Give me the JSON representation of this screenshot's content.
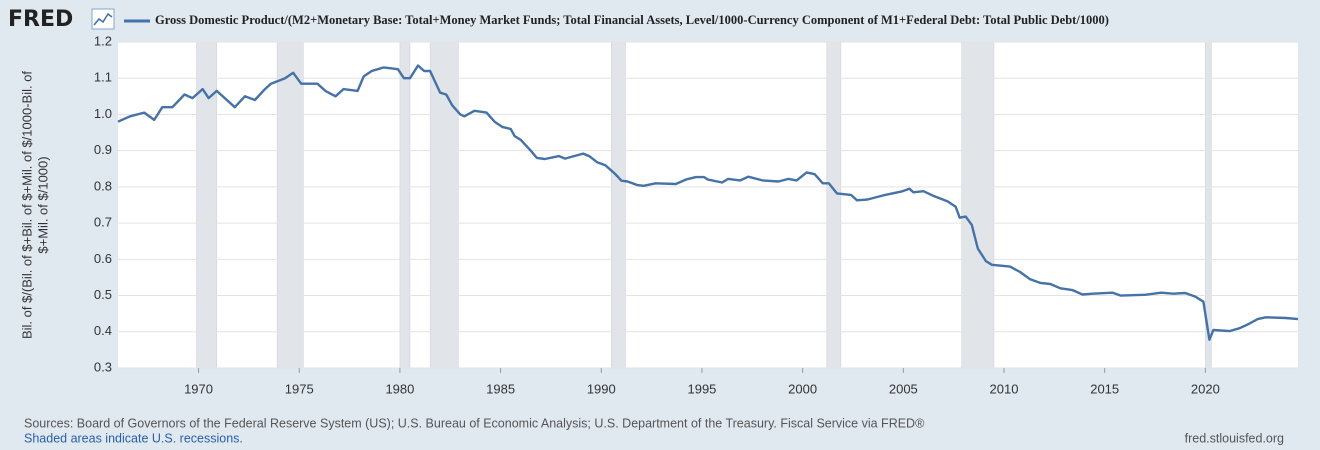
{
  "chart_data": {
    "type": "line",
    "logo": "FRED",
    "ylabel": [
      "Bil. of $/(Bil. of $+Bil. of $+Mil. of $/1000-Bil. of",
      "$+Mil. of $/1000)"
    ],
    "source": "Sources: Board of Governors of the Federal Reserve System (US); U.S. Bureau of Economic Analysis; U.S. Department of the Treasury. Fiscal Service via FRED®",
    "recession_note": "Shaded areas indicate U.S. recessions.",
    "site": "fred.stlouisfed.org",
    "xlim": [
      1966,
      2024.6
    ],
    "xticks": [
      1970,
      1975,
      1980,
      1985,
      1990,
      1995,
      2000,
      2005,
      2010,
      2015,
      2020
    ],
    "ylim": [
      0.3,
      1.2
    ],
    "yticks": [
      0.3,
      0.4,
      0.5,
      0.6,
      0.7,
      0.8,
      0.9,
      {
        "value": 1,
        "label": "1.0"
      },
      1.1,
      1.2
    ],
    "grid": true,
    "recession_color": "#e1e5ea",
    "recessions": [
      [
        1969.9,
        1970.9
      ],
      [
        1973.9,
        1975.2
      ],
      [
        1980.0,
        1980.5
      ],
      [
        1981.5,
        1982.9
      ],
      [
        1990.5,
        1991.2
      ],
      [
        2001.2,
        2001.9
      ],
      [
        2007.9,
        2009.5
      ],
      [
        2020.0,
        2020.3
      ]
    ],
    "series": [
      {
        "name": "Gross Domestic Product/(M2+Monetary Base: Total+Money Market Funds; Total Financial Assets, Level/1000-Currency Component of M1+Federal Debt: Total Public Debt/1000)",
        "color": "#4572a7",
        "x": [
          1966.0,
          1966.6,
          1967.3,
          1967.8,
          1968.2,
          1968.7,
          1969.3,
          1969.7,
          1970.2,
          1970.5,
          1970.9,
          1971.8,
          1972.3,
          1972.8,
          1973.3,
          1973.6,
          1974.3,
          1974.7,
          1975.1,
          1975.9,
          1976.3,
          1976.8,
          1977.2,
          1977.9,
          1978.2,
          1978.6,
          1979.2,
          1979.9,
          1980.2,
          1980.5,
          1980.9,
          1981.2,
          1981.5,
          1982.0,
          1982.3,
          1982.6,
          1983.0,
          1983.2,
          1983.7,
          1984.3,
          1984.7,
          1985.1,
          1985.5,
          1985.7,
          1986.0,
          1986.5,
          1986.8,
          1987.2,
          1987.9,
          1988.2,
          1989.1,
          1989.4,
          1989.8,
          1990.2,
          1990.7,
          1991.0,
          1991.3,
          1991.8,
          1992.1,
          1992.7,
          1993.7,
          1994.2,
          1994.7,
          1995.1,
          1995.3,
          1996.0,
          1996.3,
          1996.9,
          1997.3,
          1998.0,
          1998.8,
          1999.3,
          1999.7,
          2000.2,
          2000.6,
          2001.0,
          2001.3,
          2001.7,
          2002.4,
          2002.7,
          2003.2,
          2004.1,
          2004.9,
          2005.3,
          2005.5,
          2006.0,
          2006.5,
          2007.2,
          2007.6,
          2007.8,
          2008.1,
          2008.4,
          2008.7,
          2009.1,
          2009.4,
          2010.3,
          2010.8,
          2011.3,
          2011.8,
          2012.3,
          2012.8,
          2013.4,
          2013.9,
          2014.4,
          2015.4,
          2015.8,
          2017.0,
          2017.8,
          2018.4,
          2019.0,
          2019.5,
          2019.9,
          2020.2,
          2020.4,
          2021.2,
          2021.7,
          2022.1,
          2022.6,
          2023.0,
          2024.0,
          2024.6
        ],
        "values": [
          0.98,
          0.995,
          1.005,
          0.985,
          1.02,
          1.02,
          1.055,
          1.045,
          1.07,
          1.045,
          1.065,
          1.02,
          1.05,
          1.04,
          1.07,
          1.085,
          1.1,
          1.115,
          1.085,
          1.085,
          1.065,
          1.05,
          1.07,
          1.065,
          1.105,
          1.12,
          1.13,
          1.125,
          1.1,
          1.1,
          1.135,
          1.12,
          1.12,
          1.06,
          1.055,
          1.025,
          1.0,
          0.995,
          1.01,
          1.005,
          0.98,
          0.965,
          0.96,
          0.94,
          0.93,
          0.9,
          0.88,
          0.877,
          0.885,
          0.878,
          0.892,
          0.885,
          0.868,
          0.86,
          0.835,
          0.817,
          0.815,
          0.805,
          0.803,
          0.81,
          0.808,
          0.82,
          0.827,
          0.827,
          0.82,
          0.812,
          0.822,
          0.818,
          0.828,
          0.818,
          0.815,
          0.822,
          0.818,
          0.84,
          0.835,
          0.81,
          0.81,
          0.782,
          0.778,
          0.763,
          0.765,
          0.778,
          0.787,
          0.795,
          0.785,
          0.788,
          0.775,
          0.76,
          0.745,
          0.715,
          0.718,
          0.695,
          0.63,
          0.595,
          0.585,
          0.58,
          0.565,
          0.545,
          0.535,
          0.532,
          0.52,
          0.515,
          0.503,
          0.505,
          0.508,
          0.5,
          0.502,
          0.508,
          0.505,
          0.507,
          0.497,
          0.483,
          0.378,
          0.405,
          0.402,
          0.41,
          0.42,
          0.435,
          0.44,
          0.438,
          0.435
        ]
      }
    ]
  }
}
